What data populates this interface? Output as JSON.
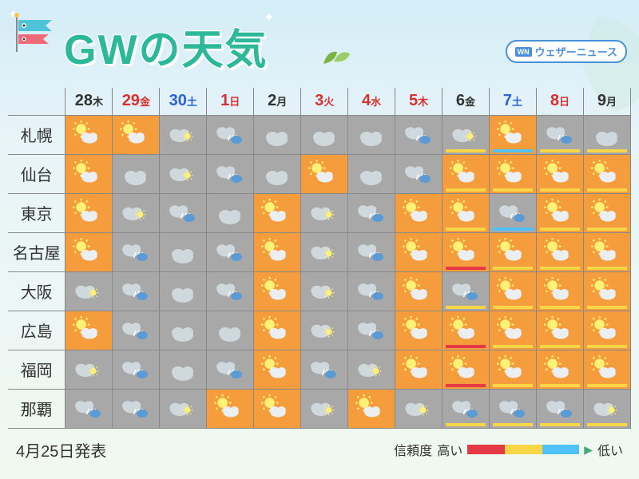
{
  "title": "GWの天気",
  "brand": {
    "logo": "WN",
    "name": "ウェザーニュース"
  },
  "publish": "4月25日発表",
  "legend": {
    "label": "信頼度",
    "high": "高い",
    "low": "低い"
  },
  "colors": {
    "title": "#2db89a",
    "cell_orange": "#f59c3d",
    "cell_gray": "#a8a8a8",
    "cell_blue": "#3b7dd8",
    "conf_red": "#e63946",
    "conf_yellow": "#f9d648",
    "conf_blue": "#4fc3f7"
  },
  "days": [
    {
      "num": "28",
      "label": "木",
      "color": "black"
    },
    {
      "num": "29",
      "label": "金",
      "color": "red"
    },
    {
      "num": "30",
      "label": "土",
      "color": "blue"
    },
    {
      "num": "1",
      "label": "日",
      "color": "red"
    },
    {
      "num": "2",
      "label": "月",
      "color": "black"
    },
    {
      "num": "3",
      "label": "火",
      "color": "red"
    },
    {
      "num": "4",
      "label": "水",
      "color": "red"
    },
    {
      "num": "5",
      "label": "木",
      "color": "red"
    },
    {
      "num": "6",
      "label": "金",
      "color": "black"
    },
    {
      "num": "7",
      "label": "土",
      "color": "blue"
    },
    {
      "num": "8",
      "label": "日",
      "color": "red"
    },
    {
      "num": "9",
      "label": "月",
      "color": "black"
    }
  ],
  "cities": [
    "札幌",
    "仙台",
    "東京",
    "名古屋",
    "大阪",
    "広島",
    "福岡",
    "那覇"
  ],
  "weather_types": {
    "sc": {
      "bg": "orange",
      "icon": "sun-cloud"
    },
    "cs": {
      "bg": "gray",
      "icon": "cloud-sun"
    },
    "cr": {
      "bg": "gray",
      "icon": "cloud-rain"
    },
    "c": {
      "bg": "gray",
      "icon": "cloud"
    },
    "rc": {
      "bg": "blue",
      "icon": "rain-cloud"
    },
    "s": {
      "bg": "orange",
      "icon": "sun"
    }
  },
  "grid": [
    [
      "sc",
      "sc",
      "cs",
      "cr",
      "c",
      "c",
      "c",
      "cr",
      "cs",
      "sc",
      "cr",
      "c"
    ],
    [
      "sc",
      "c",
      "cs",
      "cr",
      "c",
      "sc",
      "c",
      "cr",
      "sc",
      "sc",
      "sc",
      "sc"
    ],
    [
      "sc",
      "cs",
      "cr",
      "c",
      "sc",
      "cs",
      "cr",
      "sc",
      "sc",
      "cr",
      "sc",
      "sc"
    ],
    [
      "sc",
      "cr",
      "c",
      "cr",
      "sc",
      "cs",
      "cr",
      "sc",
      "sc",
      "sc",
      "sc",
      "sc"
    ],
    [
      "cs",
      "cr",
      "c",
      "cr",
      "sc",
      "cs",
      "cr",
      "sc",
      "cr",
      "sc",
      "sc",
      "sc"
    ],
    [
      "sc",
      "cr",
      "c",
      "c",
      "sc",
      "cs",
      "cr",
      "sc",
      "sc",
      "sc",
      "sc",
      "sc"
    ],
    [
      "cs",
      "cr",
      "c",
      "cr",
      "sc",
      "cr",
      "cs",
      "sc",
      "sc",
      "sc",
      "sc",
      "sc"
    ],
    [
      "cr",
      "cr",
      "cs",
      "sc",
      "sc",
      "cs",
      "sc",
      "cs",
      "cr",
      "cr",
      "cr",
      "cs"
    ]
  ],
  "confidence": [
    [
      null,
      null,
      null,
      null,
      null,
      null,
      null,
      null,
      "yellow",
      "blue",
      "yellow",
      "yellow"
    ],
    [
      null,
      null,
      null,
      null,
      null,
      null,
      null,
      null,
      "yellow",
      "yellow",
      "yellow",
      "yellow"
    ],
    [
      null,
      null,
      null,
      null,
      null,
      null,
      null,
      null,
      "yellow",
      "blue",
      "yellow",
      "yellow"
    ],
    [
      null,
      null,
      null,
      null,
      null,
      null,
      null,
      null,
      "red",
      "yellow",
      "yellow",
      "yellow"
    ],
    [
      null,
      null,
      null,
      null,
      null,
      null,
      null,
      null,
      "yellow",
      "yellow",
      "yellow",
      "yellow"
    ],
    [
      null,
      null,
      null,
      null,
      null,
      null,
      null,
      null,
      "red",
      "yellow",
      "yellow",
      "yellow"
    ],
    [
      null,
      null,
      null,
      null,
      null,
      null,
      null,
      null,
      "red",
      "yellow",
      "yellow",
      "yellow"
    ],
    [
      null,
      null,
      null,
      null,
      null,
      null,
      null,
      null,
      "yellow",
      "yellow",
      "yellow",
      "yellow"
    ]
  ]
}
